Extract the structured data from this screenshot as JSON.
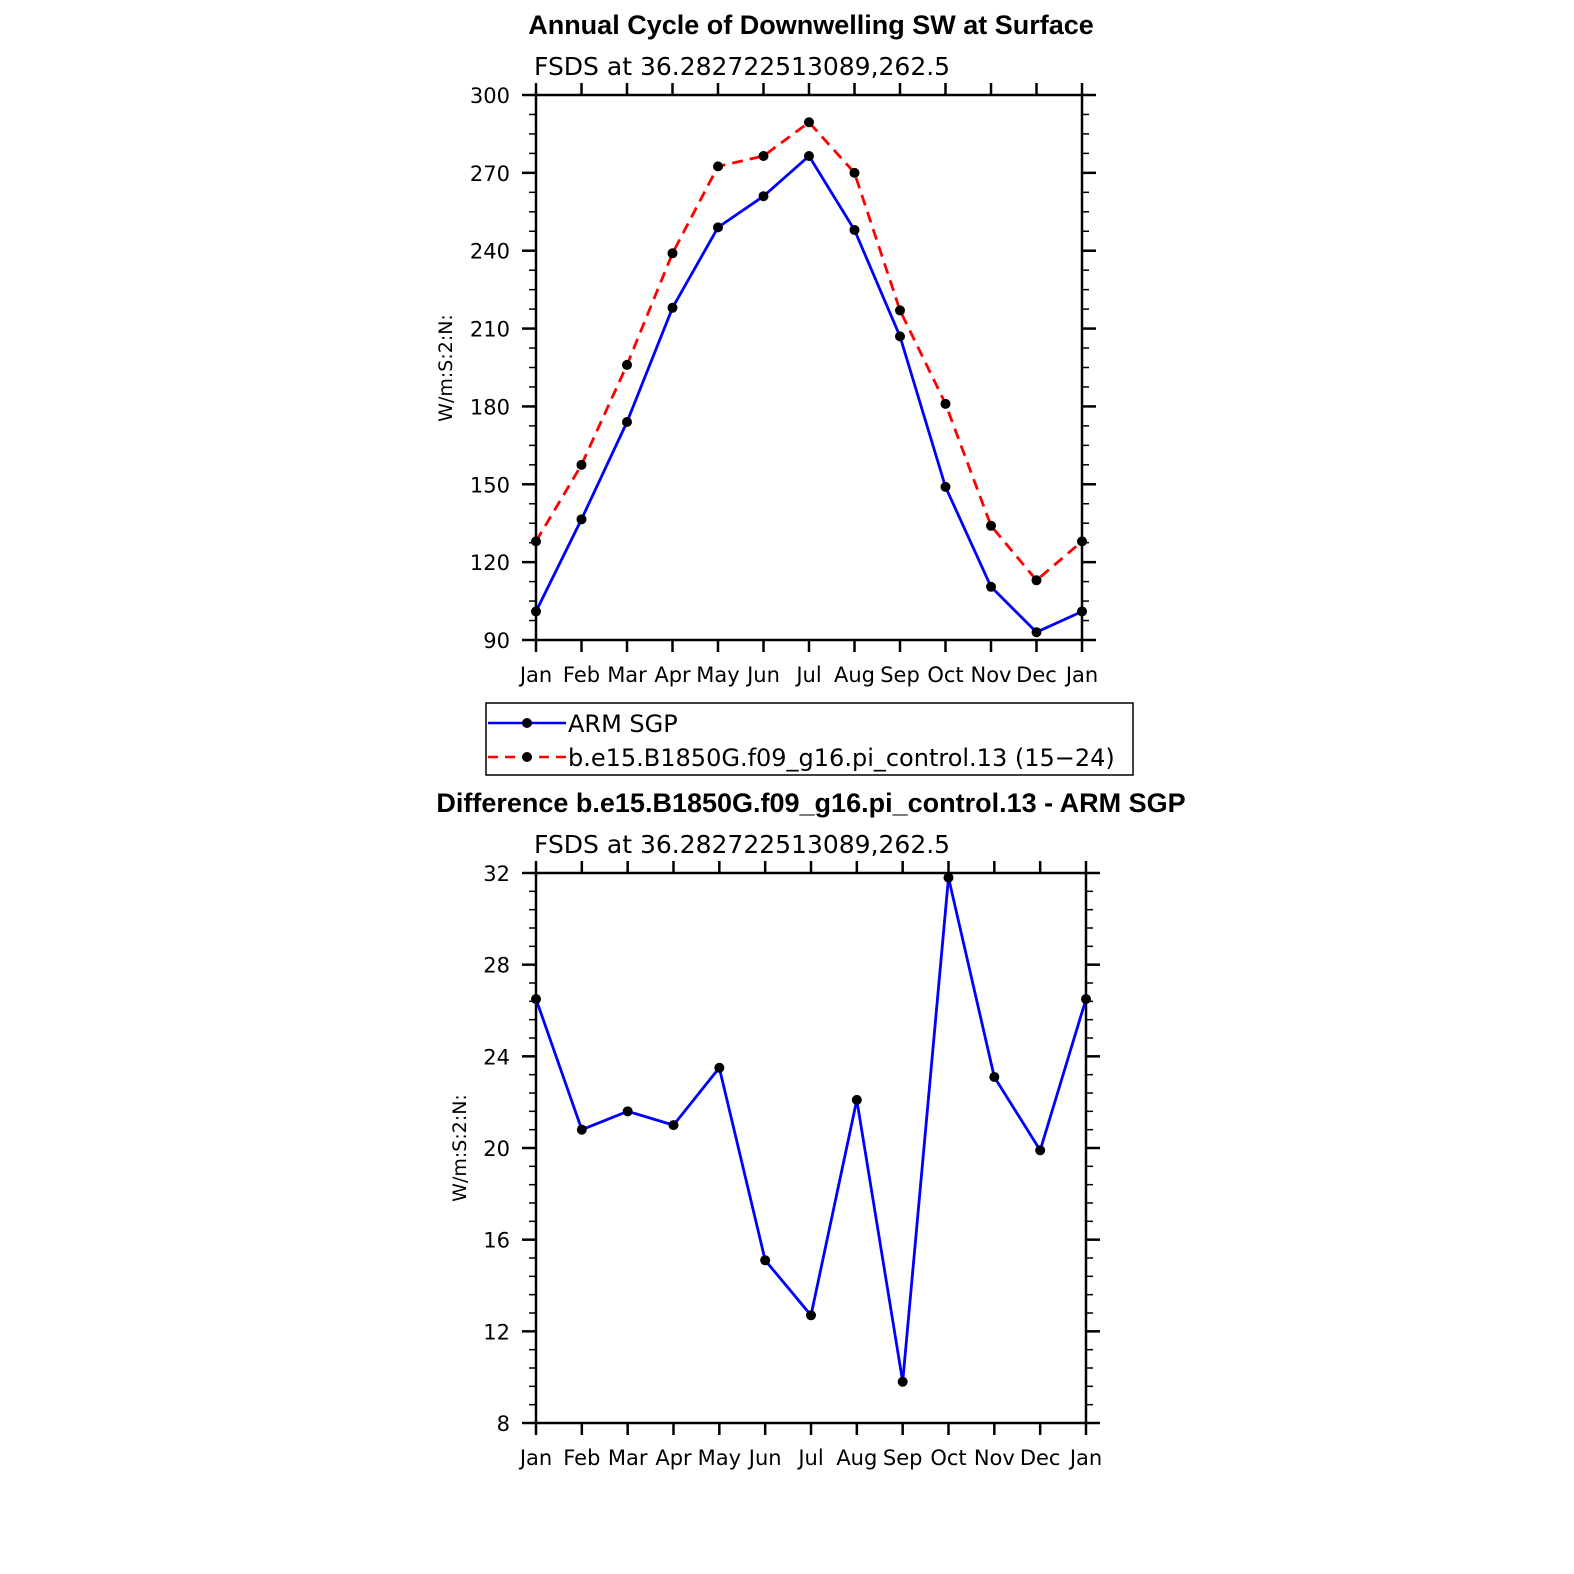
{
  "chart_data": [
    {
      "type": "line",
      "title": "Annual Cycle of Downwelling SW at Surface",
      "subtitle": "FSDS at 36.282722513089,262.5",
      "ylabel": "W/m:S:2:N:",
      "xlabel": "",
      "categories": [
        "Jan",
        "Feb",
        "Mar",
        "Apr",
        "May",
        "Jun",
        "Jul",
        "Aug",
        "Sep",
        "Oct",
        "Nov",
        "Dec",
        "Jan"
      ],
      "ylim": [
        90,
        300
      ],
      "yticks": [
        "90",
        "120",
        "150",
        "180",
        "210",
        "240",
        "270",
        "300"
      ],
      "legend_position": "bottom",
      "series": [
        {
          "name": "ARM SGP",
          "color": "#0000ff",
          "dash": "solid",
          "values": [
            101,
            136.5,
            174,
            218,
            249,
            261,
            276.5,
            248,
            207,
            149,
            110.5,
            93,
            101
          ]
        },
        {
          "name": "b.e15.B1850G.f09_g16.pi_control.13 (15−24)",
          "color": "#ff0000",
          "dash": "dashed",
          "values": [
            128,
            157.5,
            196,
            239,
            272.5,
            276.5,
            289.5,
            270,
            217,
            181,
            134,
            113,
            128
          ]
        }
      ]
    },
    {
      "type": "line",
      "title": "Difference b.e15.B1850G.f09_g16.pi_control.13 - ARM SGP",
      "subtitle": "FSDS at 36.282722513089,262.5",
      "ylabel": "W/m:S:2:N:",
      "xlabel": "",
      "categories": [
        "Jan",
        "Feb",
        "Mar",
        "Apr",
        "May",
        "Jun",
        "Jul",
        "Aug",
        "Sep",
        "Oct",
        "Nov",
        "Dec",
        "Jan"
      ],
      "ylim": [
        8,
        32
      ],
      "yticks": [
        "8",
        "12",
        "16",
        "20",
        "24",
        "28",
        "32"
      ],
      "series": [
        {
          "color": "#0000ff",
          "dash": "solid",
          "values": [
            26.5,
            20.8,
            21.6,
            21.0,
            23.5,
            15.1,
            12.7,
            22.1,
            9.8,
            31.8,
            23.1,
            19.9,
            26.5
          ]
        }
      ]
    }
  ]
}
